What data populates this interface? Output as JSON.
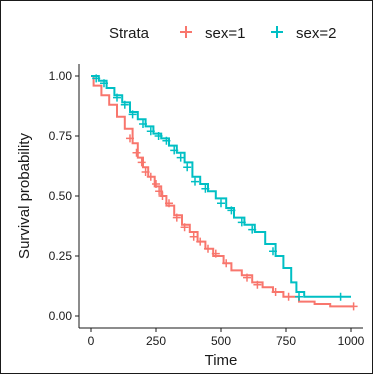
{
  "chart_data": {
    "type": "line",
    "chart_subtype": "kaplan-meier-survival",
    "xlabel": "Time",
    "ylabel": "Survival probability",
    "xlim": [
      0,
      1000
    ],
    "ylim": [
      0,
      1
    ],
    "x_ticks": [
      0,
      250,
      500,
      750,
      1000
    ],
    "x_tick_labels": [
      "0",
      "250",
      "500",
      "750",
      "1000"
    ],
    "y_ticks": [
      0,
      0.25,
      0.5,
      0.75,
      1
    ],
    "y_tick_labels": [
      "0.00",
      "0.25",
      "0.50",
      "0.75",
      "1.00"
    ],
    "grid": false,
    "legend": {
      "title": "Strata",
      "position": "top"
    },
    "series": [
      {
        "name": "sex=1",
        "color": "#F8766D",
        "points": [
          [
            0,
            1.0
          ],
          [
            10,
            0.96
          ],
          [
            40,
            0.92
          ],
          [
            70,
            0.88
          ],
          [
            100,
            0.83
          ],
          [
            130,
            0.78
          ],
          [
            160,
            0.72
          ],
          [
            180,
            0.66
          ],
          [
            200,
            0.62
          ],
          [
            220,
            0.58
          ],
          [
            245,
            0.54
          ],
          [
            270,
            0.5
          ],
          [
            290,
            0.46
          ],
          [
            320,
            0.42
          ],
          [
            350,
            0.38
          ],
          [
            380,
            0.35
          ],
          [
            410,
            0.31
          ],
          [
            440,
            0.28
          ],
          [
            470,
            0.25
          ],
          [
            510,
            0.22
          ],
          [
            540,
            0.19
          ],
          [
            580,
            0.17
          ],
          [
            620,
            0.14
          ],
          [
            660,
            0.12
          ],
          [
            700,
            0.1
          ],
          [
            740,
            0.08
          ],
          [
            800,
            0.06
          ],
          [
            860,
            0.05
          ],
          [
            920,
            0.04
          ],
          [
            1010,
            0.04
          ]
        ],
        "censored": [
          [
            150,
            0.74
          ],
          [
            175,
            0.68
          ],
          [
            195,
            0.64
          ],
          [
            210,
            0.6
          ],
          [
            230,
            0.58
          ],
          [
            250,
            0.55
          ],
          [
            262,
            0.52
          ],
          [
            275,
            0.5
          ],
          [
            300,
            0.47
          ],
          [
            330,
            0.41
          ],
          [
            360,
            0.37
          ],
          [
            395,
            0.33
          ],
          [
            420,
            0.31
          ],
          [
            450,
            0.28
          ],
          [
            480,
            0.26
          ],
          [
            520,
            0.22
          ],
          [
            600,
            0.16
          ],
          [
            640,
            0.13
          ],
          [
            710,
            0.1
          ],
          [
            760,
            0.08
          ],
          [
            1010,
            0.04
          ]
        ]
      },
      {
        "name": "sex=2",
        "color": "#00BFC4",
        "points": [
          [
            0,
            1.0
          ],
          [
            30,
            0.98
          ],
          [
            60,
            0.95
          ],
          [
            90,
            0.92
          ],
          [
            120,
            0.89
          ],
          [
            150,
            0.85
          ],
          [
            180,
            0.82
          ],
          [
            210,
            0.79
          ],
          [
            240,
            0.76
          ],
          [
            270,
            0.74
          ],
          [
            300,
            0.71
          ],
          [
            330,
            0.68
          ],
          [
            360,
            0.64
          ],
          [
            390,
            0.58
          ],
          [
            420,
            0.55
          ],
          [
            450,
            0.52
          ],
          [
            480,
            0.49
          ],
          [
            520,
            0.45
          ],
          [
            550,
            0.41
          ],
          [
            590,
            0.38
          ],
          [
            630,
            0.35
          ],
          [
            670,
            0.3
          ],
          [
            710,
            0.25
          ],
          [
            740,
            0.2
          ],
          [
            770,
            0.14
          ],
          [
            790,
            0.1
          ],
          [
            820,
            0.08
          ],
          [
            1000,
            0.08
          ]
        ],
        "censored": [
          [
            20,
            0.99
          ],
          [
            50,
            0.97
          ],
          [
            100,
            0.91
          ],
          [
            130,
            0.88
          ],
          [
            160,
            0.84
          ],
          [
            200,
            0.8
          ],
          [
            230,
            0.77
          ],
          [
            260,
            0.75
          ],
          [
            290,
            0.73
          ],
          [
            320,
            0.69
          ],
          [
            345,
            0.66
          ],
          [
            370,
            0.62
          ],
          [
            400,
            0.56
          ],
          [
            440,
            0.53
          ],
          [
            500,
            0.47
          ],
          [
            540,
            0.44
          ],
          [
            580,
            0.39
          ],
          [
            620,
            0.36
          ],
          [
            700,
            0.27
          ],
          [
            800,
            0.08
          ],
          [
            960,
            0.08
          ]
        ]
      }
    ]
  }
}
